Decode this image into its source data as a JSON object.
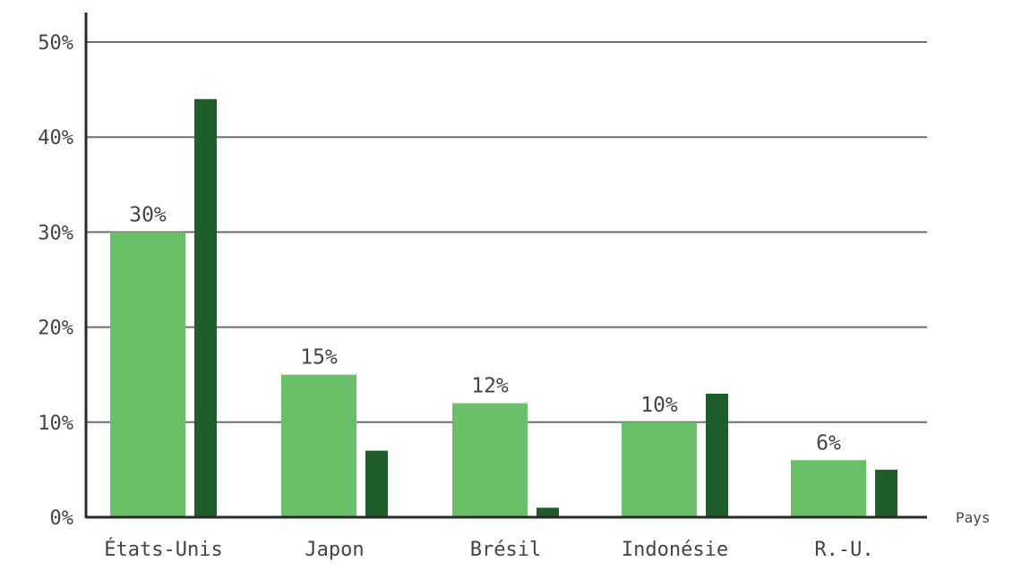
{
  "chart_data": {
    "type": "bar",
    "categories": [
      "États-Unis",
      "Japon",
      "Brésil",
      "Indonésie",
      "R.-U."
    ],
    "series": [
      {
        "values": [
          30,
          15,
          12,
          10,
          6
        ],
        "data_labels": [
          "30%",
          "15%",
          "12%",
          "10%",
          "6%"
        ],
        "color": "#6abf69"
      },
      {
        "values": [
          44,
          7,
          1,
          13,
          5
        ],
        "color": "#1f5e2a"
      }
    ],
    "yticks": [
      "0%",
      "10%",
      "20%",
      "30%",
      "40%",
      "50%"
    ],
    "ylim": [
      0,
      50
    ],
    "ylabel": "",
    "xlabel": "Pays",
    "title": "",
    "grid": true,
    "legend": "none"
  }
}
